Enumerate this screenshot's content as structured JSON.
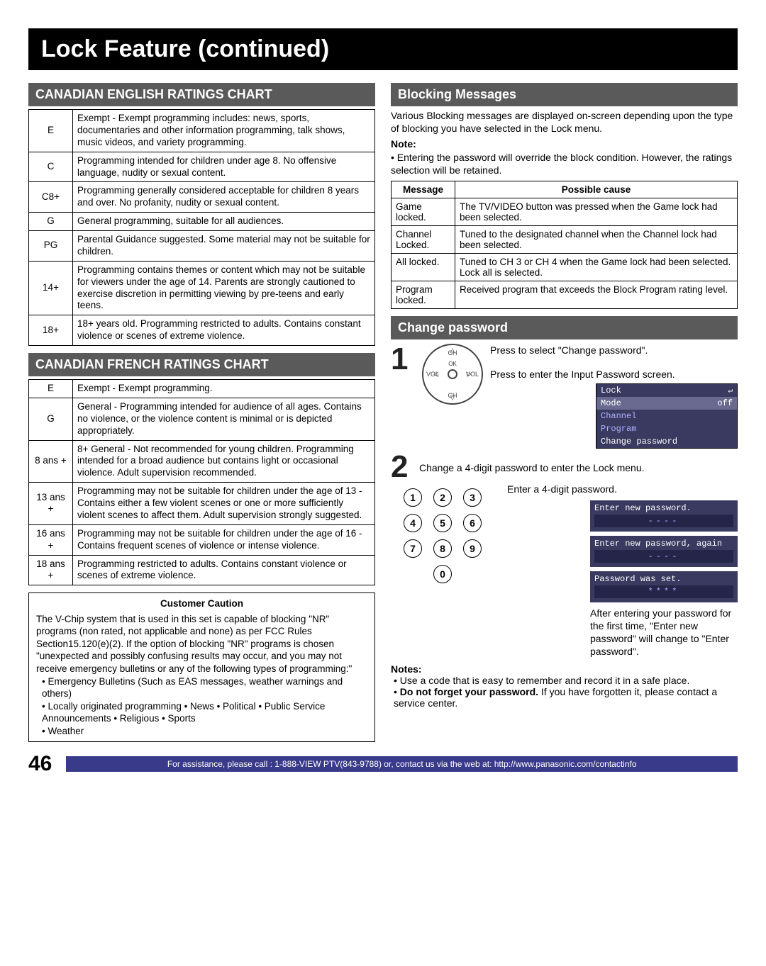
{
  "title": "Lock Feature (continued)",
  "left": {
    "en_hdr": "CANADIAN ENGLISH RATINGS CHART",
    "en_rows": [
      {
        "code": "E",
        "desc": "Exempt - Exempt programming includes: news, sports, documentaries and other information programming, talk shows, music videos, and variety programming."
      },
      {
        "code": "C",
        "desc": "Programming intended for children under age 8. No offensive language, nudity or sexual content."
      },
      {
        "code": "C8+",
        "desc": "Programming generally considered acceptable for children 8 years and over. No profanity, nudity or sexual content."
      },
      {
        "code": "G",
        "desc": "General programming, suitable for all audiences."
      },
      {
        "code": "PG",
        "desc": "Parental Guidance suggested. Some material may not be suitable for children."
      },
      {
        "code": "14+",
        "desc": "Programming contains themes or content which may not be suitable for viewers under the age of 14. Parents are strongly cautioned to exercise discretion in permitting viewing by pre-teens and early teens."
      },
      {
        "code": "18+",
        "desc": "18+ years old. Programming restricted to adults. Contains constant violence or scenes of extreme violence."
      }
    ],
    "fr_hdr": "CANADIAN FRENCH RATINGS CHART",
    "fr_rows": [
      {
        "code": "E",
        "desc": "Exempt - Exempt programming."
      },
      {
        "code": "G",
        "desc": "General - Programming intended for audience of all ages. Contains no violence, or the violence content is minimal or is depicted appropriately."
      },
      {
        "code": "8 ans +",
        "desc": "8+ General - Not recommended for young children. Programming intended for a broad audience but contains light or occasional violence. Adult supervision recommended."
      },
      {
        "code": "13 ans +",
        "desc": "Programming may not be suitable for children under the age of 13 - Contains either a few violent scenes or one or more sufficiently violent scenes to affect them. Adult supervision strongly suggested."
      },
      {
        "code": "16 ans +",
        "desc": "Programming may not be suitable for children under the age of 16 - Contains frequent scenes of violence or intense violence."
      },
      {
        "code": "18 ans +",
        "desc": "Programming restricted to adults. Contains constant violence or scenes of extreme violence."
      }
    ],
    "caution_title": "Customer Caution",
    "caution_body": "The V-Chip system that is used in this set is capable of blocking \"NR\" programs (non rated, not applicable and none) as per FCC Rules Section15.120(e)(2). If the option of blocking \"NR\" programs is chosen \"unexpected and possibly confusing results may occur, and you may not receive emergency bulletins or any of the following types of programming:\"",
    "caution_bullets": [
      "Emergency Bulletins (Such as EAS messages, weather warnings and others)",
      "Locally originated programming • News • Political • Public Service Announcements • Religious • Sports",
      "Weather"
    ]
  },
  "right": {
    "blk_hdr": "Blocking Messages",
    "blk_intro": "Various Blocking messages are displayed on-screen depending upon the type of blocking you have selected in the Lock menu.",
    "note_label": "Note:",
    "note_body": "Entering the password will override the block condition. However, the ratings selection will be retained.",
    "msg_col1": "Message",
    "msg_col2": "Possible cause",
    "msg_rows": [
      {
        "m": "Game locked.",
        "c": "The TV/VIDEO button was pressed when the Game lock had been selected."
      },
      {
        "m": "Channel Locked.",
        "c": "Tuned to the designated channel when the Channel lock had been selected."
      },
      {
        "m": "All locked.",
        "c": "Tuned to CH 3 or CH 4 when the Game lock had been selected. Lock all is selected."
      },
      {
        "m": "Program locked.",
        "c": "Received program that exceeds the Block Program rating level."
      }
    ],
    "cp_hdr": "Change password",
    "step1a": "Press to select \"Change password\".",
    "step1b": "Press to enter the Input Password screen.",
    "remote": {
      "up": "CH",
      "down": "CH",
      "left": "VOL",
      "right": "VOL",
      "ok": "OK"
    },
    "osd_menu": {
      "title": "Lock",
      "rows": [
        {
          "l": "Mode",
          "r": "off"
        },
        {
          "l": "Channel",
          "r": ""
        },
        {
          "l": "Program",
          "r": ""
        },
        {
          "l": "Change password",
          "r": ""
        }
      ],
      "ret": "↵"
    },
    "step2a": "Change a 4-digit password to enter the Lock menu.",
    "step2b": "Enter a 4-digit password.",
    "keypad": [
      "1",
      "2",
      "3",
      "4",
      "5",
      "6",
      "7",
      "8",
      "9",
      "0"
    ],
    "pw1": "Enter new password.",
    "pw1v": "----",
    "pw2": "Enter new password, again",
    "pw2v": "----",
    "pw3": "Password was set.",
    "pw3v": "****",
    "after": "After entering your password for the first time, \"Enter new password\" will change to \"Enter password\".",
    "notes_label": "Notes:",
    "notes": [
      "Use a code that is easy to remember and record it in a safe place.",
      "Do not forget your password. If you have forgotten it, please contact a service center."
    ],
    "notes_bold": "Do not forget your password."
  },
  "footer": {
    "page": "46",
    "bar": "For assistance, please call : 1-888-VIEW PTV(843-9788) or, contact us via the web at: http://www.panasonic.com/contactinfo"
  },
  "colors": {
    "title_bg": "#000000",
    "title_fg": "#ffffff",
    "section_bg": "#5a5a5a",
    "section_fg": "#ffffff",
    "osd_bg": "#3a3a60",
    "osd_fg": "#b0b0ff",
    "footer_bg": "#3a3a8a"
  }
}
